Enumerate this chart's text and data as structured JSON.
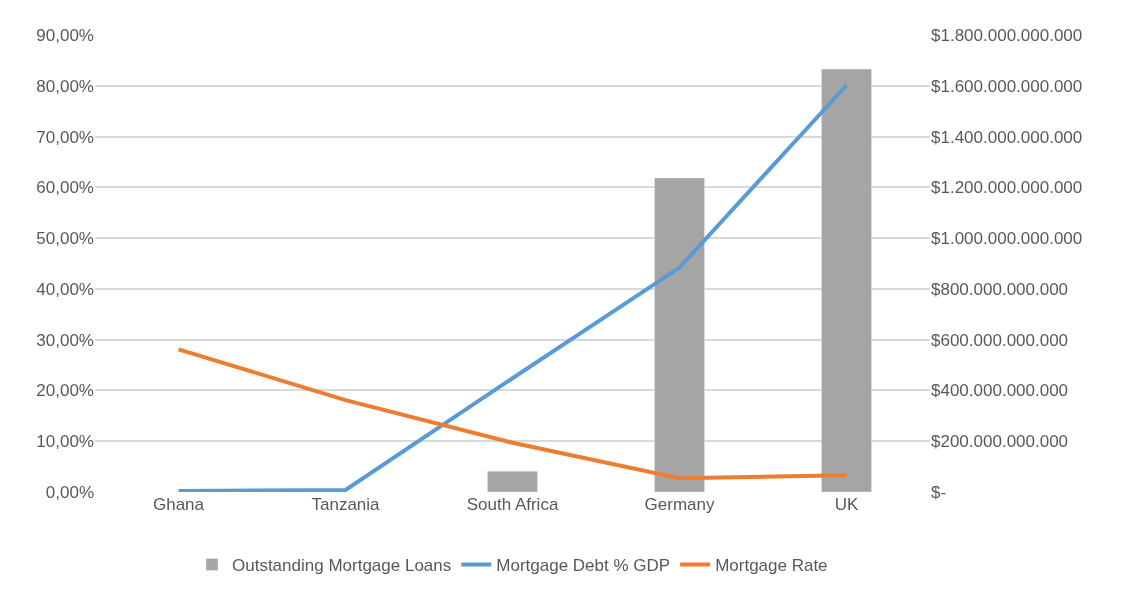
{
  "chart_data": {
    "type": "bar",
    "categories": [
      "Ghana",
      "Tanzania",
      "South Africa",
      "Germany",
      "UK"
    ],
    "series": [
      {
        "name": "Outstanding Mortgage Loans",
        "axis": "y2",
        "color": "#a5a5a5",
        "values": [
          null,
          null,
          82000000000,
          1237000000000,
          1666000000000
        ]
      },
      {
        "name": "Mortgage Debt % GDP",
        "type": "line",
        "axis": "y",
        "color": "#5b9bd5",
        "values": [
          0.2,
          0.4,
          22.4,
          44.2,
          80.1
        ]
      },
      {
        "name": "Mortgage Rate",
        "type": "line",
        "axis": "y",
        "color": "#ed7d31",
        "values": [
          28.1,
          18.1,
          9.7,
          2.7,
          3.3
        ]
      }
    ],
    "ylim": [
      0,
      90
    ],
    "yticks": [
      {
        "value": 0,
        "label": "0,00%"
      },
      {
        "value": 10,
        "label": "10,00%"
      },
      {
        "value": 20,
        "label": "20,00%"
      },
      {
        "value": 30,
        "label": "30,00%"
      },
      {
        "value": 40,
        "label": "40,00%"
      },
      {
        "value": 50,
        "label": "50,00%"
      },
      {
        "value": 60,
        "label": "60,00%"
      },
      {
        "value": 70,
        "label": "70,00%"
      },
      {
        "value": 80,
        "label": "80,00%"
      },
      {
        "value": 90,
        "label": "90,00%"
      }
    ],
    "y2lim": [
      0,
      1800000000000
    ],
    "y2ticks": [
      {
        "value": 0,
        "label": "$-"
      },
      {
        "value": 200000000000,
        "label": "$200.000.000.000"
      },
      {
        "value": 400000000000,
        "label": "$400.000.000.000"
      },
      {
        "value": 600000000000,
        "label": "$600.000.000.000"
      },
      {
        "value": 800000000000,
        "label": "$800.000.000.000"
      },
      {
        "value": 1000000000000,
        "label": "$1.000.000.000.000"
      },
      {
        "value": 1200000000000,
        "label": "$1.200.000.000.000"
      },
      {
        "value": 1400000000000,
        "label": "$1.400.000.000.000"
      },
      {
        "value": 1600000000000,
        "label": "$1.600.000.000.000"
      },
      {
        "value": 1800000000000,
        "label": "$1.800.000.000.000"
      }
    ],
    "grid": "y",
    "legend": "bottom",
    "marker": "none",
    "line_style": "solid"
  }
}
